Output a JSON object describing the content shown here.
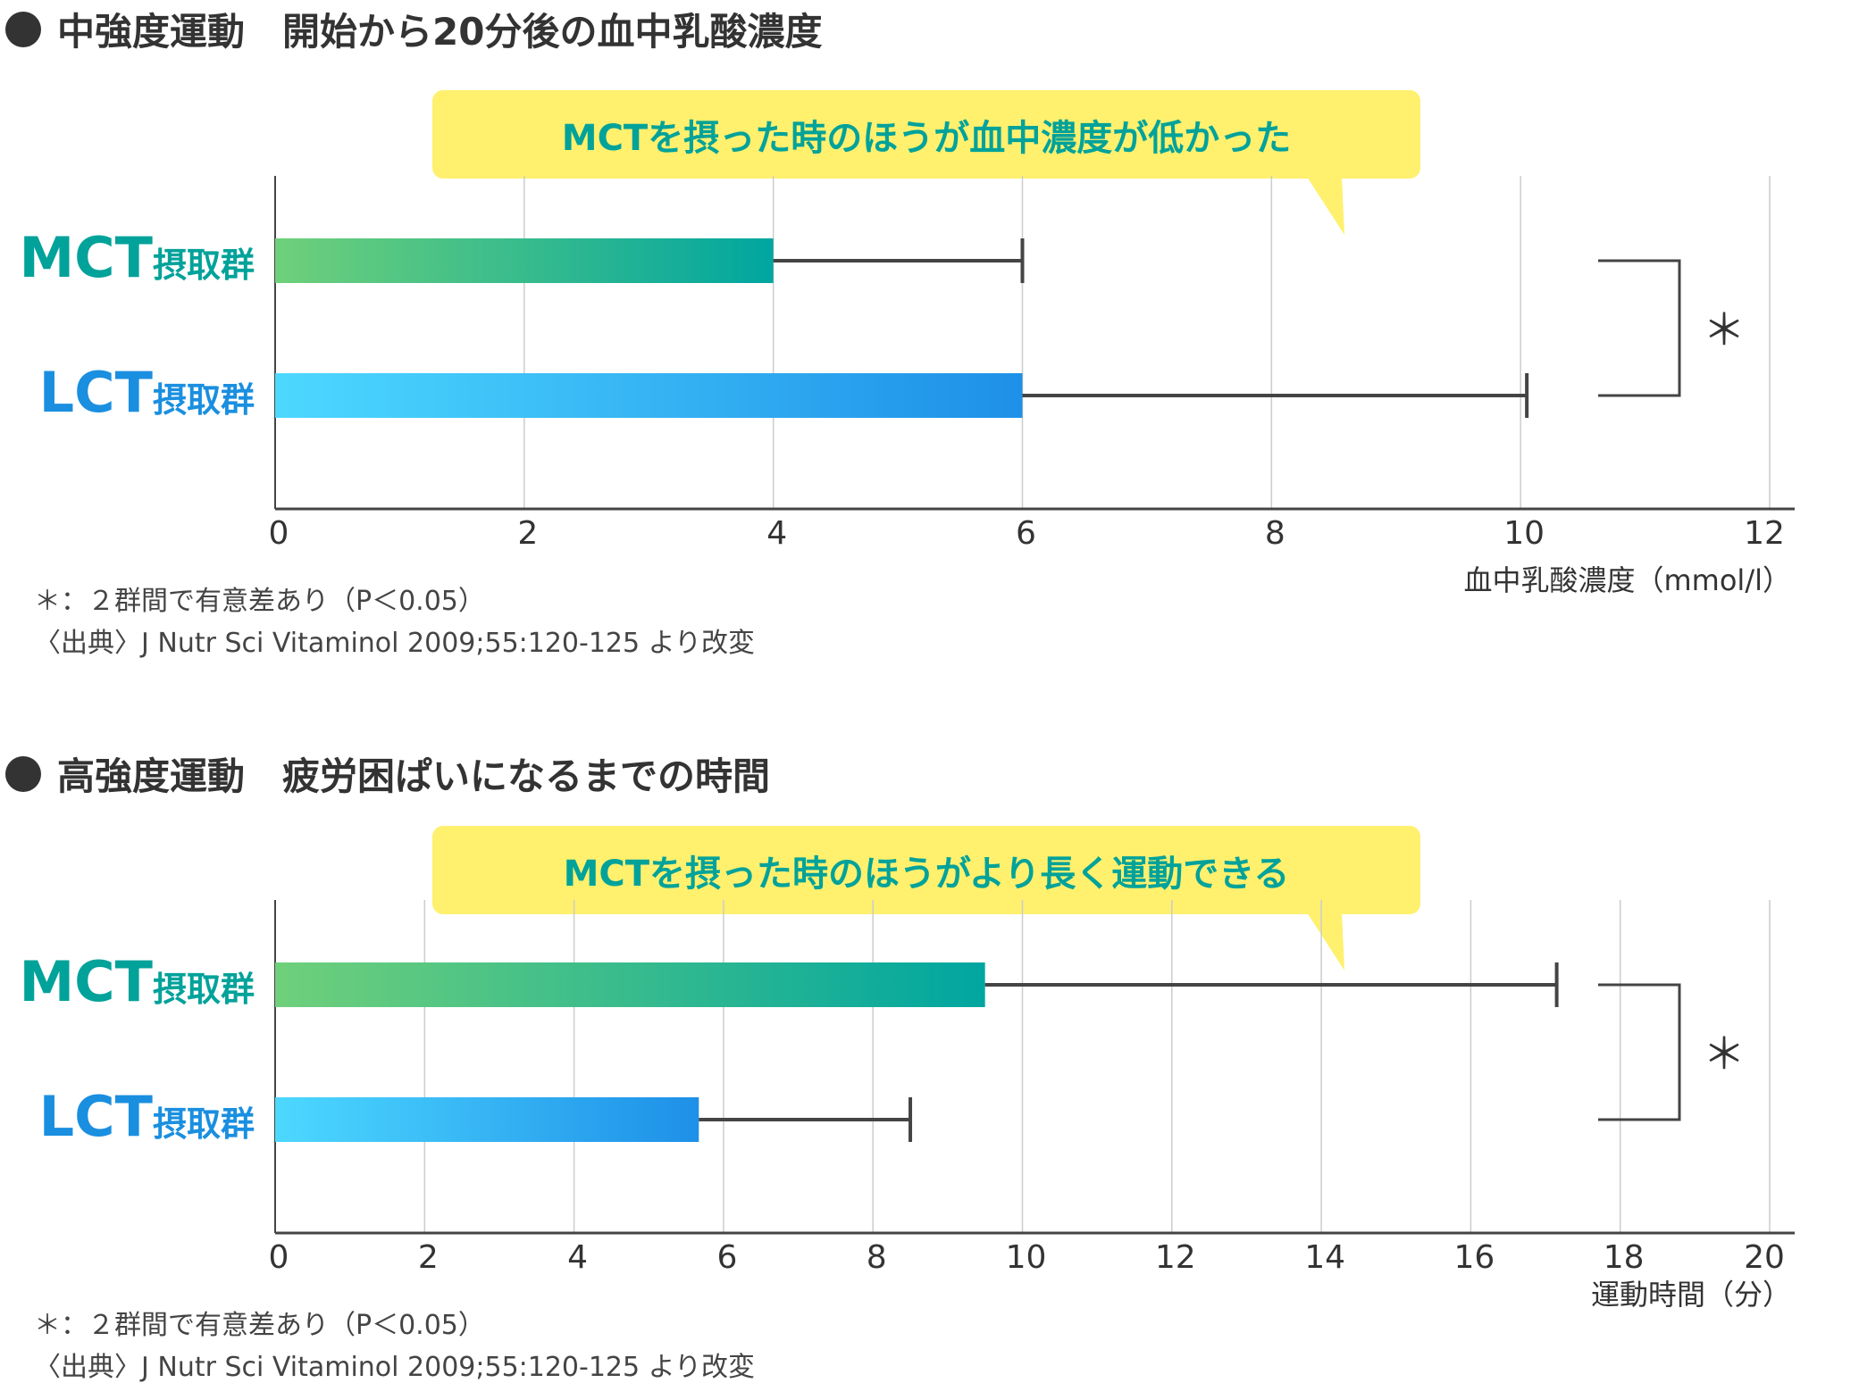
{
  "colors": {
    "mct_text": "#00a29a",
    "lct_text": "#1a8fe0",
    "mct_gradient": [
      "#6fd07a",
      "#00a6a0"
    ],
    "lct_gradient": [
      "#4dd8ff",
      "#1e90e8"
    ],
    "callout_bg": "#fff06e",
    "axis": "#444444",
    "grid": "#cccccc"
  },
  "chart_data": [
    {
      "type": "bar",
      "orientation": "horizontal",
      "title": "中強度運動　開始から20分後の血中乳酸濃度",
      "callout": "MCTを摂った時のほうが血中濃度が低かった",
      "categories": [
        {
          "abbr": "MCT",
          "suffix": "摂取群"
        },
        {
          "abbr": "LCT",
          "suffix": "摂取群"
        }
      ],
      "values": [
        4.0,
        6.0
      ],
      "error_upper": [
        6.0,
        10.05
      ],
      "xlim": [
        0,
        12
      ],
      "xticks": [
        "0",
        "2",
        "4",
        "6",
        "8",
        "10",
        "12"
      ],
      "xlabel": "血中乳酸濃度（mmol/l）",
      "grid": true,
      "significance": "＊",
      "footnotes": [
        "＊：２群間で有意差あり（P＜0.05）",
        "〈出典〉J Nutr Sci Vitaminol 2009;55:120-125 より改変"
      ]
    },
    {
      "type": "bar",
      "orientation": "horizontal",
      "title": "高強度運動　疲労困ぱいになるまでの時間",
      "callout": "MCTを摂った時のほうがより長く運動できる",
      "categories": [
        {
          "abbr": "MCT",
          "suffix": "摂取群"
        },
        {
          "abbr": "LCT",
          "suffix": "摂取群"
        }
      ],
      "values": [
        9.5,
        5.67
      ],
      "error_upper": [
        17.15,
        8.5
      ],
      "xlim": [
        0,
        20
      ],
      "xticks": [
        "0",
        "2",
        "4",
        "6",
        "8",
        "10",
        "12",
        "14",
        "16",
        "18",
        "20"
      ],
      "xlabel": "運動時間（分）",
      "grid": true,
      "significance": "＊",
      "footnotes": [
        "＊：２群間で有意差あり（P＜0.05）",
        "〈出典〉J Nutr Sci Vitaminol 2009;55:120-125 より改変"
      ]
    }
  ]
}
